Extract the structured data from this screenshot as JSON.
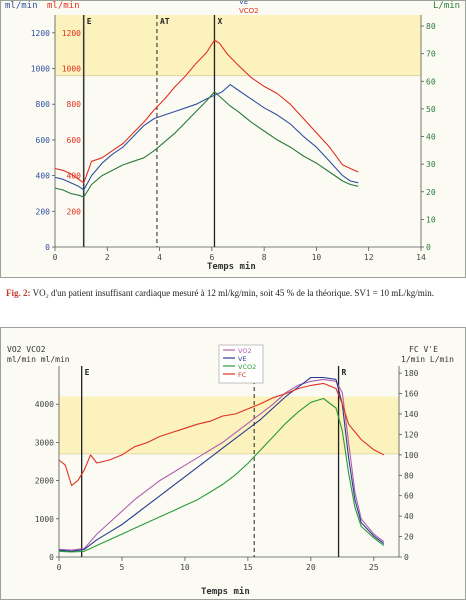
{
  "figure1": {
    "left_axis_labels": [
      "ml/min",
      "ml/min"
    ],
    "right_axis_label": "L/min",
    "legend": [
      "VE",
      "VCO2"
    ],
    "marker_labels": [
      "E",
      "AT",
      "X"
    ],
    "xlabel": "Temps  min"
  },
  "caption": {
    "label": "Fig. 2:",
    "text": " VO₂ d'un patient insuffisant cardiaque mesuré à 12 ml/kg/min, soit 45 % de la théorique. SV1 = 10 mL/kg/min."
  },
  "figure2": {
    "left_axis_labels": [
      "VO2  VCO2",
      "ml/min  ml/min"
    ],
    "right_axis_labels": [
      "FC  V'E",
      "1/min  L/min"
    ],
    "legend": [
      "VO2",
      "VE",
      "VCO2",
      "FC"
    ],
    "marker_labels": [
      "E",
      "R"
    ],
    "xlabel": "Temps  min"
  },
  "chart_data": [
    {
      "type": "line",
      "xlim": [
        0,
        14
      ],
      "xticks": [
        0,
        2,
        4,
        6,
        8,
        10,
        12,
        14
      ],
      "ylim_left": [
        0,
        1300
      ],
      "yticks_left_outer": [
        0,
        200,
        400,
        600,
        800,
        1000,
        1200
      ],
      "yticks_left_inner": [
        200,
        400,
        600,
        800,
        1000,
        1200
      ],
      "ylim_right": [
        0,
        84
      ],
      "yticks_right": [
        0,
        10,
        20,
        30,
        40,
        50,
        60,
        70,
        80
      ],
      "shaded_band_left_units": [
        960,
        1300
      ],
      "vlines": [
        {
          "x": 1.1,
          "style": "solid",
          "label": "E"
        },
        {
          "x": 3.9,
          "style": "dashed",
          "label": "AT"
        },
        {
          "x": 6.1,
          "style": "solid",
          "label": "X"
        }
      ],
      "series": [
        {
          "name": "VCO2",
          "color": "#e03020",
          "x": [
            0,
            0.3,
            0.6,
            0.9,
            1.1,
            1.4,
            1.8,
            2.2,
            2.6,
            3.0,
            3.4,
            3.8,
            4.2,
            4.6,
            5.0,
            5.4,
            5.8,
            6.1,
            6.3,
            6.6,
            7.0,
            7.5,
            8.0,
            8.5,
            9.0,
            9.5,
            10.0,
            10.5,
            11.0,
            11.3,
            11.6
          ],
          "y": [
            440,
            430,
            410,
            380,
            360,
            480,
            500,
            540,
            580,
            640,
            700,
            770,
            830,
            900,
            960,
            1030,
            1090,
            1160,
            1140,
            1080,
            1020,
            950,
            900,
            860,
            800,
            720,
            640,
            560,
            460,
            440,
            420
          ]
        },
        {
          "name": "VE",
          "color": "#3050a0",
          "x": [
            0,
            0.3,
            0.6,
            0.9,
            1.1,
            1.4,
            1.8,
            2.2,
            2.6,
            3.0,
            3.4,
            3.8,
            4.2,
            4.6,
            5.0,
            5.4,
            5.8,
            6.1,
            6.4,
            6.7,
            7.0,
            7.5,
            8.0,
            8.5,
            9.0,
            9.5,
            10.0,
            10.5,
            11.0,
            11.3,
            11.6
          ],
          "y": [
            390,
            380,
            360,
            340,
            320,
            400,
            470,
            520,
            560,
            620,
            680,
            720,
            740,
            760,
            780,
            800,
            830,
            850,
            870,
            910,
            880,
            830,
            780,
            740,
            690,
            620,
            560,
            480,
            400,
            370,
            360
          ]
        },
        {
          "name": "VO2",
          "color": "#2a7a3a",
          "x": [
            0,
            0.3,
            0.6,
            0.9,
            1.1,
            1.4,
            1.8,
            2.2,
            2.6,
            3.0,
            3.4,
            3.8,
            4.2,
            4.6,
            5.0,
            5.4,
            5.8,
            6.1,
            6.4,
            6.7,
            7.0,
            7.5,
            8.0,
            8.5,
            9.0,
            9.5,
            10.0,
            10.5,
            11.0,
            11.3,
            11.6
          ],
          "y": [
            330,
            320,
            300,
            290,
            280,
            350,
            400,
            430,
            460,
            480,
            500,
            540,
            590,
            640,
            700,
            760,
            820,
            870,
            830,
            790,
            760,
            700,
            650,
            600,
            560,
            510,
            470,
            420,
            370,
            350,
            340
          ]
        }
      ]
    },
    {
      "type": "line",
      "xlim": [
        0,
        27
      ],
      "xticks": [
        0,
        5,
        10,
        15,
        20,
        25
      ],
      "ylim_left": [
        0,
        5000
      ],
      "yticks_left": [
        0,
        1000,
        2000,
        3000,
        4000
      ],
      "ylim_right": [
        0,
        187
      ],
      "yticks_right": [
        0,
        20,
        40,
        60,
        80,
        100,
        120,
        140,
        160,
        180
      ],
      "shaded_band_left_units": [
        2700,
        4200
      ],
      "vlines": [
        {
          "x": 1.8,
          "style": "solid",
          "label": "E"
        },
        {
          "x": 15.5,
          "style": "dashed",
          "label": ""
        },
        {
          "x": 22.2,
          "style": "solid",
          "label": "R"
        }
      ],
      "series": [
        {
          "name": "VO2",
          "color": "#b060b0",
          "x": [
            0,
            1,
            2,
            3,
            4,
            5,
            6,
            7,
            8,
            9,
            10,
            11,
            12,
            13,
            14,
            15,
            16,
            17,
            18,
            19,
            20,
            21,
            22,
            22.5,
            23,
            23.5,
            24,
            25,
            25.8
          ],
          "y": [
            200,
            180,
            220,
            600,
            900,
            1200,
            1500,
            1750,
            2000,
            2200,
            2400,
            2600,
            2800,
            3000,
            3250,
            3500,
            3750,
            4000,
            4300,
            4500,
            4600,
            4650,
            4600,
            4300,
            3000,
            1700,
            1000,
            600,
            400
          ]
        },
        {
          "name": "VE",
          "color": "#2a3a90",
          "x": [
            0,
            1,
            2,
            3,
            4,
            5,
            6,
            7,
            8,
            9,
            10,
            11,
            12,
            13,
            14,
            15,
            16,
            17,
            18,
            19,
            20,
            21,
            22,
            22.5,
            23,
            23.5,
            24,
            25,
            25.8
          ],
          "y": [
            180,
            150,
            200,
            450,
            650,
            850,
            1100,
            1350,
            1600,
            1850,
            2100,
            2350,
            2600,
            2850,
            3100,
            3350,
            3600,
            3900,
            4200,
            4450,
            4700,
            4700,
            4650,
            4000,
            2600,
            1500,
            900,
            550,
            350
          ]
        },
        {
          "name": "VCO2",
          "color": "#2a9a3a",
          "x": [
            0,
            1,
            2,
            3,
            4,
            5,
            6,
            7,
            8,
            9,
            10,
            11,
            12,
            13,
            14,
            15,
            16,
            17,
            18,
            19,
            20,
            21,
            22,
            22.5,
            23,
            23.5,
            24,
            25,
            25.8
          ],
          "y": [
            150,
            130,
            150,
            300,
            450,
            600,
            750,
            900,
            1050,
            1200,
            1350,
            1500,
            1700,
            1900,
            2150,
            2450,
            2800,
            3150,
            3500,
            3800,
            4050,
            4150,
            3900,
            3300,
            2200,
            1300,
            800,
            500,
            300
          ]
        },
        {
          "name": "FC",
          "color": "#e03020",
          "x": [
            0,
            0.5,
            1,
            1.5,
            2,
            2.5,
            3,
            4,
            5,
            6,
            7,
            8,
            9,
            10,
            11,
            12,
            13,
            14,
            15,
            16,
            17,
            18,
            19,
            20,
            21,
            22,
            22.5,
            23,
            24,
            25,
            25.8
          ],
          "y": [
            95,
            90,
            70,
            75,
            85,
            100,
            92,
            95,
            100,
            108,
            112,
            118,
            122,
            126,
            130,
            133,
            138,
            140,
            145,
            150,
            156,
            160,
            165,
            168,
            170,
            165,
            150,
            130,
            115,
            105,
            100
          ]
        }
      ]
    }
  ]
}
